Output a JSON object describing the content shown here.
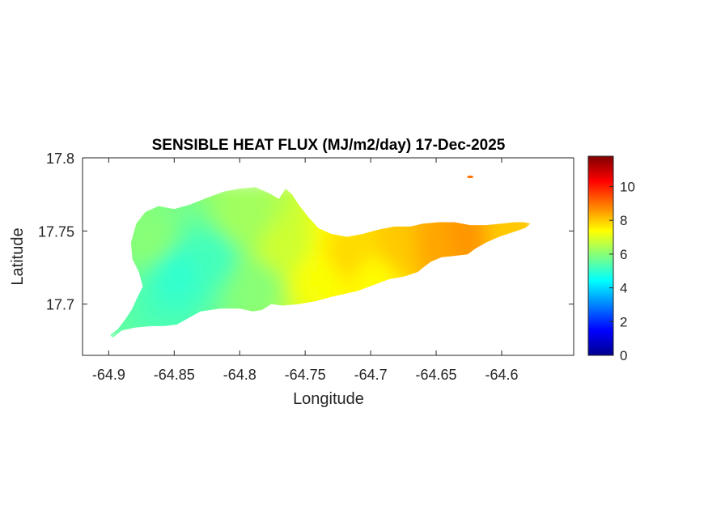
{
  "chart_data": {
    "type": "heatmap",
    "title": "SENSIBLE HEAT FLUX (MJ/m2/day) 17-Dec-2025",
    "xlabel": "Longitude",
    "ylabel": "Latitude",
    "xlim": [
      -64.92,
      -64.545
    ],
    "ylim": [
      17.665,
      17.8
    ],
    "x_ticks": [
      -64.9,
      -64.85,
      -64.8,
      -64.75,
      -64.7,
      -64.65,
      -64.6
    ],
    "x_tick_labels": [
      "-64.9",
      "-64.85",
      "-64.8",
      "-64.75",
      "-64.7",
      "-64.65",
      "-64.6"
    ],
    "y_ticks": [
      17.7,
      17.75,
      17.8
    ],
    "y_tick_labels": [
      "17.7",
      "17.75",
      "17.8"
    ],
    "colorbar": {
      "colormap": "jet",
      "range": [
        0,
        11.8
      ],
      "ticks": [
        0,
        2,
        4,
        6,
        8,
        10
      ],
      "tick_labels": [
        "0",
        "2",
        "4",
        "6",
        "8",
        "10"
      ]
    },
    "grid": false,
    "region_outline": [
      [
        -64.899,
        17.679
      ],
      [
        -64.893,
        17.683
      ],
      [
        -64.887,
        17.69
      ],
      [
        -64.882,
        17.697
      ],
      [
        -64.878,
        17.705
      ],
      [
        -64.874,
        17.712
      ],
      [
        -64.877,
        17.722
      ],
      [
        -64.882,
        17.731
      ],
      [
        -64.883,
        17.742
      ],
      [
        -64.879,
        17.755
      ],
      [
        -64.872,
        17.763
      ],
      [
        -64.862,
        17.767
      ],
      [
        -64.85,
        17.765
      ],
      [
        -64.838,
        17.768
      ],
      [
        -64.824,
        17.773
      ],
      [
        -64.812,
        17.777
      ],
      [
        -64.8,
        17.779
      ],
      [
        -64.788,
        17.78
      ],
      [
        -64.778,
        17.776
      ],
      [
        -64.77,
        17.772
      ],
      [
        -64.765,
        17.779
      ],
      [
        -64.76,
        17.775
      ],
      [
        -64.755,
        17.768
      ],
      [
        -64.748,
        17.76
      ],
      [
        -64.74,
        17.752
      ],
      [
        -64.73,
        17.748
      ],
      [
        -64.718,
        17.746
      ],
      [
        -64.706,
        17.748
      ],
      [
        -64.694,
        17.751
      ],
      [
        -64.682,
        17.753
      ],
      [
        -64.67,
        17.753
      ],
      [
        -64.66,
        17.755
      ],
      [
        -64.648,
        17.756
      ],
      [
        -64.636,
        17.756
      ],
      [
        -64.624,
        17.754
      ],
      [
        -64.612,
        17.754
      ],
      [
        -64.6,
        17.755
      ],
      [
        -64.59,
        17.756
      ],
      [
        -64.583,
        17.756
      ],
      [
        -64.578,
        17.755
      ],
      [
        -64.582,
        17.752
      ],
      [
        -64.592,
        17.749
      ],
      [
        -64.602,
        17.746
      ],
      [
        -64.612,
        17.742
      ],
      [
        -64.62,
        17.738
      ],
      [
        -64.626,
        17.734
      ],
      [
        -64.636,
        17.733
      ],
      [
        -64.646,
        17.732
      ],
      [
        -64.654,
        17.729
      ],
      [
        -64.66,
        17.725
      ],
      [
        -64.664,
        17.722
      ],
      [
        -64.674,
        17.719
      ],
      [
        -64.686,
        17.717
      ],
      [
        -64.698,
        17.713
      ],
      [
        -64.71,
        17.709
      ],
      [
        -64.72,
        17.707
      ],
      [
        -64.73,
        17.705
      ],
      [
        -64.742,
        17.702
      ],
      [
        -64.755,
        17.7
      ],
      [
        -64.767,
        17.699
      ],
      [
        -64.776,
        17.7
      ],
      [
        -64.783,
        17.696
      ],
      [
        -64.79,
        17.695
      ],
      [
        -64.8,
        17.697
      ],
      [
        -64.815,
        17.697
      ],
      [
        -64.83,
        17.695
      ],
      [
        -64.84,
        17.69
      ],
      [
        -64.848,
        17.686
      ],
      [
        -64.858,
        17.685
      ],
      [
        -64.868,
        17.685
      ],
      [
        -64.88,
        17.684
      ],
      [
        -64.89,
        17.682
      ],
      [
        -64.897,
        17.677
      ]
    ],
    "region_values": [
      {
        "lon": -64.87,
        "lat": 17.745,
        "value": 6.0
      },
      {
        "lon": -64.85,
        "lat": 17.725,
        "value": 5.0
      },
      {
        "lon": -64.825,
        "lat": 17.735,
        "value": 5.2
      },
      {
        "lon": -64.8,
        "lat": 17.76,
        "value": 6.3
      },
      {
        "lon": -64.79,
        "lat": 17.715,
        "value": 6.0
      },
      {
        "lon": -64.77,
        "lat": 17.74,
        "value": 6.8
      },
      {
        "lon": -64.745,
        "lat": 17.72,
        "value": 7.3
      },
      {
        "lon": -64.72,
        "lat": 17.735,
        "value": 7.8
      },
      {
        "lon": -64.7,
        "lat": 17.72,
        "value": 7.4
      },
      {
        "lon": -64.68,
        "lat": 17.74,
        "value": 8.0
      },
      {
        "lon": -64.655,
        "lat": 17.742,
        "value": 8.4
      },
      {
        "lon": -64.63,
        "lat": 17.748,
        "value": 8.6
      },
      {
        "lon": -64.6,
        "lat": 17.751,
        "value": 8.0
      }
    ],
    "islet": {
      "lon": -64.624,
      "lat": 17.787,
      "value": 9.0
    }
  }
}
